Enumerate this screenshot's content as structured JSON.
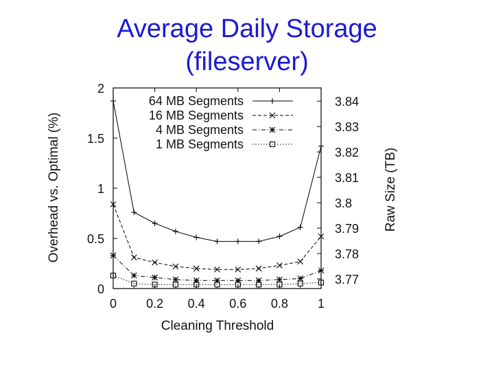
{
  "slide": {
    "title_line1": "Average Daily Storage",
    "title_line2": "(fileserver)"
  },
  "chart_data": {
    "type": "line",
    "title": "Average Daily Storage (fileserver)",
    "xlabel": "Cleaning Threshold",
    "ylabel": "Overhead vs. Optimal (%)",
    "y2label": "Raw Size (TB)",
    "xlim": [
      0,
      1
    ],
    "ylim": [
      0,
      2
    ],
    "y2lim": [
      3.7662,
      3.8452
    ],
    "x_ticks": [
      "0",
      "0.2",
      "0.4",
      "0.6",
      "0.8",
      "1"
    ],
    "y_ticks": [
      "0",
      "0.5",
      "1",
      "1.5",
      "2"
    ],
    "y2_ticks": [
      "3.77",
      "3.78",
      "3.79",
      "3.8",
      "3.81",
      "3.82",
      "3.83",
      "3.84"
    ],
    "legend_position": "top-right",
    "grid": false,
    "x": [
      0,
      0.1,
      0.2,
      0.3,
      0.4,
      0.5,
      0.6,
      0.7,
      0.8,
      0.9,
      1
    ],
    "series": [
      {
        "name": "64 MB Segments",
        "marker": "plus",
        "dash": "solid",
        "values": [
          1.87,
          0.76,
          0.65,
          0.57,
          0.51,
          0.47,
          0.47,
          0.47,
          0.52,
          0.61,
          1.42
        ]
      },
      {
        "name": "16 MB Segments",
        "marker": "cross",
        "dash": "dashed",
        "values": [
          0.84,
          0.31,
          0.26,
          0.22,
          0.2,
          0.19,
          0.19,
          0.2,
          0.23,
          0.27,
          0.52
        ]
      },
      {
        "name": "4 MB Segments",
        "marker": "star",
        "dash": "dashdot",
        "values": [
          0.33,
          0.13,
          0.11,
          0.09,
          0.08,
          0.08,
          0.08,
          0.08,
          0.09,
          0.1,
          0.18
        ]
      },
      {
        "name": "1 MB Segments",
        "marker": "square",
        "dash": "dotted",
        "values": [
          0.13,
          0.05,
          0.04,
          0.04,
          0.04,
          0.04,
          0.04,
          0.04,
          0.04,
          0.05,
          0.06
        ]
      }
    ]
  }
}
